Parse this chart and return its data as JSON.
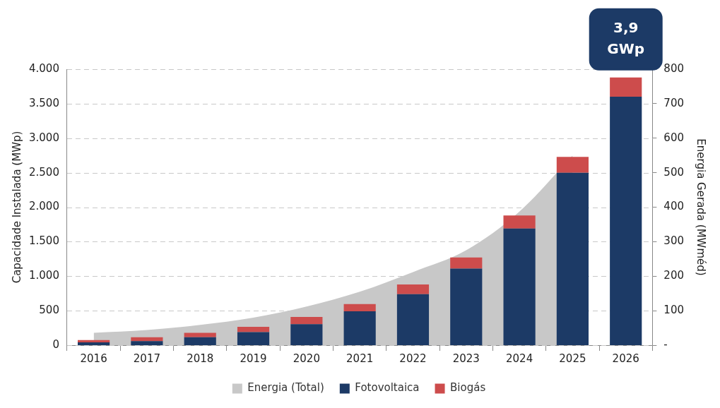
{
  "chart_data": {
    "type": "bar",
    "stacked": true,
    "categories": [
      "2016",
      "2017",
      "2018",
      "2019",
      "2020",
      "2021",
      "2022",
      "2023",
      "2024",
      "2025",
      "2026"
    ],
    "series": [
      {
        "name": "Energia (Total)",
        "type": "area",
        "axis": "y2",
        "color": "#c8c8c8",
        "values": [
          36,
          44,
          59,
          80,
          112,
          155,
          212,
          275,
          387,
          550,
          null
        ]
      },
      {
        "name": "Fotovoltaica",
        "color": "#1c3a66",
        "values": [
          40,
          60,
          115,
          190,
          305,
          490,
          740,
          1110,
          1690,
          2500,
          3600
        ]
      },
      {
        "name": "Biogás",
        "color": "#cd4c4c",
        "values": [
          35,
          55,
          65,
          75,
          105,
          105,
          140,
          160,
          190,
          230,
          280
        ]
      }
    ],
    "ylabel": "Capacidade Instalada (MWp)",
    "y2label": "Energia Gerada (MWméd)",
    "ylim": [
      0,
      4000
    ],
    "yticks": [
      0,
      {
        "value": 500,
        "label": "500"
      },
      {
        "value": 1000,
        "label": "1.000"
      },
      {
        "value": 1500,
        "label": "1.500"
      },
      {
        "value": 2000,
        "label": "2.000"
      },
      {
        "value": 2500,
        "label": "2.500"
      },
      {
        "value": 3000,
        "label": "3.000"
      },
      {
        "value": 3500,
        "label": "3.500"
      },
      {
        "value": 4000,
        "label": "4.000"
      }
    ],
    "y2lim": [
      0,
      800
    ],
    "y2ticks": [
      {
        "value": 0,
        "label": "-"
      },
      100,
      200,
      300,
      400,
      500,
      600,
      700,
      800
    ],
    "annotations": [
      {
        "text": "3,9 GWp",
        "x": "2026",
        "y": 3880
      }
    ],
    "grid": "y",
    "legend": "bottom"
  }
}
